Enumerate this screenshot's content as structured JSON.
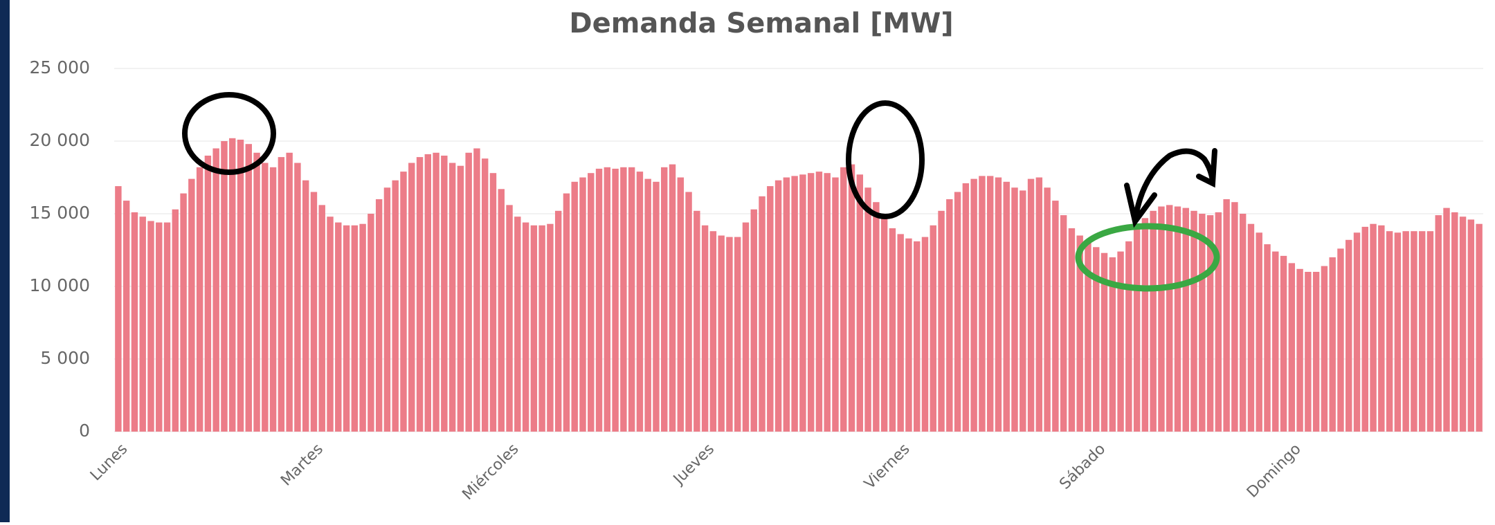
{
  "chart_data": {
    "type": "bar",
    "title": "Demanda Semanal [MW]",
    "categories": [
      "Lunes",
      null,
      null,
      null,
      null,
      null,
      null,
      null,
      null,
      null,
      null,
      null,
      null,
      null,
      null,
      null,
      null,
      null,
      null,
      null,
      null,
      null,
      null,
      null,
      "Martes",
      null,
      null,
      null,
      null,
      null,
      null,
      null,
      null,
      null,
      null,
      null,
      null,
      null,
      null,
      null,
      null,
      null,
      null,
      null,
      null,
      null,
      null,
      null,
      "Miércoles",
      null,
      null,
      null,
      null,
      null,
      null,
      null,
      null,
      null,
      null,
      null,
      null,
      null,
      null,
      null,
      null,
      null,
      null,
      null,
      null,
      null,
      null,
      null,
      "Jueves",
      null,
      null,
      null,
      null,
      null,
      null,
      null,
      null,
      null,
      null,
      null,
      null,
      null,
      null,
      null,
      null,
      null,
      null,
      null,
      null,
      null,
      null,
      null,
      "Viernes",
      null,
      null,
      null,
      null,
      null,
      null,
      null,
      null,
      null,
      null,
      null,
      null,
      null,
      null,
      null,
      null,
      null,
      null,
      null,
      null,
      null,
      null,
      null,
      "Sábado",
      null,
      null,
      null,
      null,
      null,
      null,
      null,
      null,
      null,
      null,
      null,
      null,
      null,
      null,
      null,
      null,
      null,
      null,
      null,
      null,
      null,
      null,
      null,
      "Domingo",
      null,
      null,
      null,
      null,
      null,
      null,
      null,
      null,
      null,
      null,
      null,
      null,
      null,
      null,
      null,
      null,
      null,
      null,
      null,
      null,
      null,
      null,
      null
    ],
    "values": [
      16900,
      15900,
      15100,
      14800,
      14500,
      14400,
      14400,
      15300,
      16400,
      17400,
      18200,
      19000,
      19500,
      20000,
      20200,
      20100,
      19800,
      19200,
      18500,
      18200,
      18900,
      19200,
      18500,
      17300,
      16500,
      15600,
      14800,
      14400,
      14200,
      14200,
      14300,
      15000,
      16000,
      16800,
      17300,
      17900,
      18500,
      18900,
      19100,
      19200,
      19000,
      18500,
      18300,
      19200,
      19500,
      18800,
      17800,
      16700,
      15600,
      14800,
      14400,
      14200,
      14200,
      14300,
      15200,
      16400,
      17200,
      17500,
      17800,
      18100,
      18200,
      18100,
      18200,
      18200,
      17900,
      17400,
      17200,
      18200,
      18400,
      17500,
      16500,
      15200,
      14200,
      13800,
      13500,
      13400,
      13400,
      14400,
      15300,
      16200,
      16900,
      17300,
      17500,
      17600,
      17700,
      17800,
      17900,
      17800,
      17500,
      18200,
      18400,
      17700,
      16800,
      15800,
      14800,
      14000,
      13600,
      13300,
      13100,
      13400,
      14200,
      15200,
      16000,
      16500,
      17100,
      17400,
      17600,
      17600,
      17500,
      17200,
      16800,
      16600,
      17400,
      17500,
      16800,
      15900,
      14900,
      14000,
      13500,
      13100,
      12700,
      12300,
      12000,
      12400,
      13100,
      14000,
      14700,
      15200,
      15500,
      15600,
      15500,
      15400,
      15200,
      15000,
      14900,
      15100,
      16000,
      15800,
      15000,
      14300,
      13700,
      12900,
      12400,
      12100,
      11600,
      11200,
      11000,
      11000,
      11400,
      12000,
      12600,
      13200,
      13700,
      14100,
      14300,
      14200,
      13800,
      13700,
      13800,
      13800,
      13800,
      13800,
      14900,
      15400,
      15100,
      14800,
      14600,
      14300
    ],
    "color": "#ec7c88",
    "ylim": [
      0,
      25000
    ],
    "yticks": [
      {
        "value": 0,
        "label": "0"
      },
      {
        "value": 5000,
        "label": "5 000"
      },
      {
        "value": 10000,
        "label": "10 000"
      },
      {
        "value": 15000,
        "label": "15 000"
      },
      {
        "value": 20000,
        "label": "20 000"
      },
      {
        "value": 25000,
        "label": "25 000"
      }
    ],
    "grid": true
  }
}
